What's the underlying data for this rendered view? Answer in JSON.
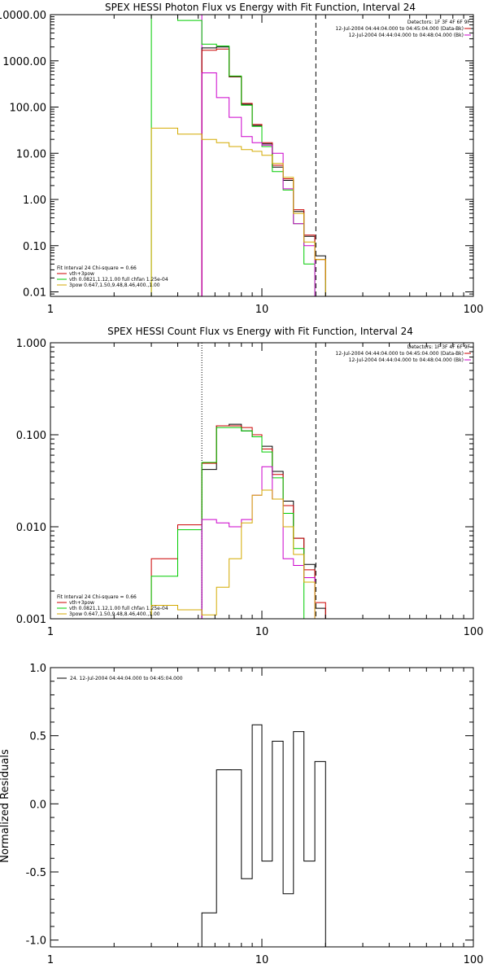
{
  "chart_data": [
    {
      "type": "line",
      "title": "SPEX HESSI Photon Flux vs Energy with Fit Function, Interval 24",
      "xscale": "log",
      "yscale": "log",
      "xlim": [
        1,
        100
      ],
      "ylim": [
        0.008,
        10000
      ],
      "x_tick_labels": [
        "1",
        "10",
        "100"
      ],
      "y_ticks": [
        0.01,
        0.1,
        1,
        10,
        100,
        1000,
        10000
      ],
      "y_tick_labels": [
        "0.01",
        "0.10",
        "1.00",
        "10.00",
        "100.00",
        "1000.00",
        "10000.00"
      ],
      "info_lines": [
        "Detectors: 1F 3F 4F 6F 9F",
        "12-Jul-2004 04:44:04.000 to 04:45:04.000 (Data-Bk)",
        "12-Jul-2004 04:44:04.000 to 04:48:04.000 (Bk)"
      ],
      "fit_lines": [
        "Fit Interval 24   Chi-square = 0.66",
        "vth+3pow",
        "vth 0.0821,1.12,1.00  full chfan 1.25e-04",
        "3pow 0.647,1.50,9.48,8.46,400.,1.00"
      ],
      "vlines": [
        {
          "x": 5.2,
          "style": "solid",
          "color": "#cc00cc"
        },
        {
          "x": 18.0,
          "style": "dashed",
          "color": "#000000"
        }
      ],
      "series": [
        {
          "color": "#000000",
          "edges": [
            5.2,
            6.1,
            7.0,
            8.0,
            9.0,
            10.0,
            11.2,
            12.6,
            14.1,
            15.8,
            17.8,
            20.0
          ],
          "values": [
            1900,
            2000,
            450,
            115,
            40,
            16,
            5,
            2.6,
            0.55,
            0.16,
            0.06
          ]
        },
        {
          "color": "#cc0000",
          "edges": [
            5.2,
            6.1,
            7.0,
            8.0,
            9.0,
            10.0,
            11.2,
            12.6,
            14.1,
            15.8,
            17.8,
            20.0
          ],
          "values": [
            1700,
            1800,
            460,
            120,
            42,
            17,
            5.5,
            2.8,
            0.6,
            0.17,
            0.05,
            0.018
          ]
        },
        {
          "color": "#00cc00",
          "edges": [
            3.0,
            4.0,
            5.2,
            6.1,
            7.0,
            8.0,
            9.0,
            10.0,
            11.2,
            12.6,
            14.1,
            15.8,
            17.8
          ],
          "values": [
            10000,
            7500,
            2300,
            2100,
            470,
            110,
            38,
            14,
            4,
            1.6,
            0.3,
            0.04
          ]
        },
        {
          "color": "#cc00cc",
          "edges": [
            5.2,
            6.1,
            7.0,
            8.0,
            9.0,
            10.0,
            11.2,
            12.6,
            14.1,
            15.8,
            17.8
          ],
          "values": [
            550,
            160,
            60,
            23,
            17,
            15,
            10,
            1.7,
            0.3,
            0.1
          ]
        },
        {
          "color": "#d4aa00",
          "edges": [
            3.0,
            4.0,
            5.2,
            6.1,
            7.0,
            8.0,
            9.0,
            10.0,
            11.2,
            12.6,
            14.1,
            15.8,
            17.8,
            20.0
          ],
          "values": [
            35,
            26,
            20,
            17,
            14,
            12,
            11,
            9,
            6,
            3,
            0.5,
            0.12,
            0.05
          ]
        }
      ]
    },
    {
      "type": "line",
      "title": "SPEX HESSI Count Flux vs Energy with Fit Function, Interval 24",
      "xscale": "log",
      "yscale": "log",
      "xlim": [
        1,
        100
      ],
      "ylim": [
        0.001,
        1
      ],
      "x_tick_labels": [
        "1",
        "10",
        "100"
      ],
      "y_ticks": [
        0.001,
        0.01,
        0.1,
        1
      ],
      "y_tick_labels": [
        "0.001",
        "0.010",
        "0.100",
        "1.000"
      ],
      "info_lines": [
        "Detectors: 1F 3F 4F 6F 9F",
        "12-Jul-2004 04:44:04.000 to 04:45:04.000 (Data-Bk)",
        "12-Jul-2004 04:44:04.000 to 04:48:04.000 (Bk)"
      ],
      "fit_lines": [
        "Fit Interval 24   Chi-square = 0.66",
        "vth+3pow",
        "vth 0.0821,1.12,1.00  full chfan 1.25e-04",
        "3pow 0.647,1.50,9.48,8.46,400.,1.00"
      ],
      "vlines": [
        {
          "x": 5.2,
          "style": "dotted",
          "color": "#000000"
        },
        {
          "x": 18.0,
          "style": "dashed",
          "color": "#000000"
        }
      ],
      "series": [
        {
          "color": "#000000",
          "edges": [
            5.2,
            6.1,
            7.0,
            8.0,
            9.0,
            10.0,
            11.2,
            12.6,
            14.1,
            15.8,
            17.8,
            20.0
          ],
          "values": [
            0.042,
            0.125,
            0.13,
            0.11,
            0.095,
            0.075,
            0.04,
            0.019,
            0.0075,
            0.0039,
            0.0013
          ]
        },
        {
          "color": "#cc0000",
          "edges": [
            3.0,
            4.0,
            5.2,
            6.1,
            7.0,
            8.0,
            9.0,
            10.0,
            11.2,
            12.6,
            14.1,
            15.8,
            17.8,
            20.0
          ],
          "values": [
            0.0045,
            0.0105,
            0.049,
            0.125,
            0.125,
            0.12,
            0.1,
            0.07,
            0.037,
            0.017,
            0.0075,
            0.0034,
            0.0015
          ]
        },
        {
          "color": "#00cc00",
          "edges": [
            3.0,
            4.0,
            5.2,
            6.1,
            7.0,
            8.0,
            9.0,
            10.0,
            11.2,
            12.6,
            14.1,
            15.8,
            17.8
          ],
          "values": [
            0.0029,
            0.0093,
            0.05,
            0.12,
            0.12,
            0.11,
            0.095,
            0.065,
            0.034,
            0.014,
            0.0058,
            0.0009
          ]
        },
        {
          "color": "#cc00cc",
          "edges": [
            5.2,
            6.1,
            7.0,
            8.0,
            9.0,
            10.0,
            11.2,
            12.6,
            14.1,
            15.8,
            17.8
          ],
          "values": [
            0.012,
            0.011,
            0.01,
            0.012,
            0.022,
            0.045,
            0.02,
            0.0045,
            0.0038,
            0.0028
          ]
        },
        {
          "color": "#d4aa00",
          "edges": [
            3.0,
            4.0,
            5.2,
            6.1,
            7.0,
            8.0,
            9.0,
            10.0,
            11.2,
            12.6,
            14.1,
            15.8,
            17.8
          ],
          "values": [
            0.0014,
            0.00125,
            0.0011,
            0.0022,
            0.0045,
            0.011,
            0.022,
            0.025,
            0.02,
            0.01,
            0.005,
            0.0025
          ]
        }
      ]
    },
    {
      "type": "line",
      "xscale": "log",
      "xlim": [
        1,
        100
      ],
      "ylim": [
        -1.05,
        1.0
      ],
      "ylabel": "Normalized Residuals",
      "x_tick_labels": [
        "1",
        "10",
        "100"
      ],
      "y_ticks": [
        -1,
        -0.5,
        0,
        0.5,
        1
      ],
      "y_tick_labels": [
        "-1.0",
        "-0.5",
        "0.0",
        "0.5",
        "1.0"
      ],
      "legend_text": "24. 12-Jul-2004 04:44:04.000 to 04:45:04.000",
      "series": [
        {
          "color": "#000000",
          "edges": [
            5.2,
            6.1,
            7.0,
            8.0,
            9.0,
            10.0,
            11.2,
            12.6,
            14.1,
            15.8,
            17.8,
            20.0
          ],
          "values": [
            -0.8,
            0.25,
            0.25,
            -0.55,
            0.58,
            -0.42,
            0.46,
            -0.66,
            0.53,
            -0.42,
            0.31
          ]
        }
      ]
    }
  ]
}
